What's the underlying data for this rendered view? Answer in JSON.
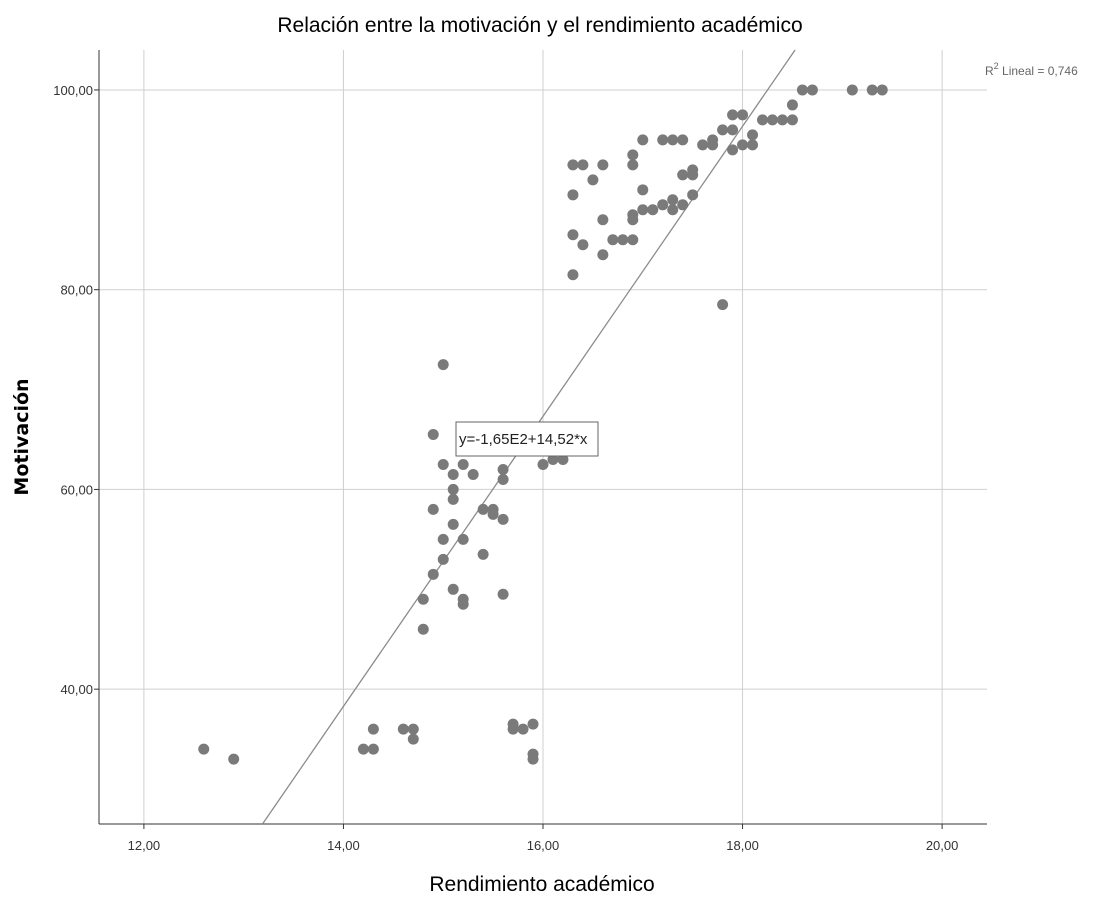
{
  "chart_data": {
    "type": "scatter",
    "title": "Relación entre la motivación y el rendimiento académico",
    "xlabel": "Rendimiento académico",
    "ylabel": "Motivación",
    "xlim": [
      11.55,
      20.45
    ],
    "ylim": [
      26.5,
      104.0
    ],
    "x_ticks": [
      12,
      14,
      16,
      18,
      20
    ],
    "x_tick_labels": [
      "12,00",
      "14,00",
      "16,00",
      "18,00",
      "20,00"
    ],
    "y_ticks": [
      40,
      60,
      80,
      100
    ],
    "y_tick_labels": [
      "40,00",
      "60,00",
      "80,00",
      "100,00"
    ],
    "grid": true,
    "point_color": "#7a7a7a",
    "fit_line": {
      "intercept": -165,
      "slope": 14.52,
      "equation_label": "y=-1,65E2+14,52*x",
      "r2_label_prefix": "R",
      "r2_label_suffix": " Lineal = 0,746",
      "color": "#8c8c8c"
    },
    "points": [
      [
        12.6,
        34
      ],
      [
        12.9,
        33
      ],
      [
        14.2,
        34
      ],
      [
        14.3,
        34
      ],
      [
        14.3,
        36
      ],
      [
        14.6,
        36
      ],
      [
        14.7,
        36
      ],
      [
        14.7,
        35
      ],
      [
        14.8,
        46
      ],
      [
        14.8,
        49
      ],
      [
        14.9,
        51.5
      ],
      [
        14.9,
        58
      ],
      [
        14.9,
        65.5
      ],
      [
        15.0,
        53
      ],
      [
        15.0,
        55
      ],
      [
        15.0,
        62.5
      ],
      [
        15.0,
        72.5
      ],
      [
        15.1,
        50
      ],
      [
        15.1,
        56.5
      ],
      [
        15.1,
        59
      ],
      [
        15.1,
        60
      ],
      [
        15.1,
        61.5
      ],
      [
        15.2,
        48.5
      ],
      [
        15.2,
        49
      ],
      [
        15.2,
        55
      ],
      [
        15.2,
        62.5
      ],
      [
        15.3,
        61.5
      ],
      [
        15.4,
        53.5
      ],
      [
        15.4,
        58
      ],
      [
        15.5,
        57.5
      ],
      [
        15.5,
        58
      ],
      [
        15.6,
        49.5
      ],
      [
        15.6,
        57
      ],
      [
        15.6,
        61
      ],
      [
        15.6,
        62
      ],
      [
        15.7,
        36
      ],
      [
        15.7,
        36.5
      ],
      [
        15.8,
        36
      ],
      [
        15.9,
        33
      ],
      [
        15.9,
        33.5
      ],
      [
        15.9,
        36.5
      ],
      [
        16.0,
        62.5
      ],
      [
        16.0,
        64
      ],
      [
        16.1,
        63
      ],
      [
        16.2,
        63
      ],
      [
        16.3,
        81.5
      ],
      [
        16.3,
        85.5
      ],
      [
        16.3,
        89.5
      ],
      [
        16.3,
        92.5
      ],
      [
        16.4,
        84.5
      ],
      [
        16.4,
        92.5
      ],
      [
        16.5,
        91
      ],
      [
        16.6,
        83.5
      ],
      [
        16.6,
        87
      ],
      [
        16.6,
        92.5
      ],
      [
        16.7,
        85
      ],
      [
        16.8,
        85
      ],
      [
        16.9,
        85
      ],
      [
        16.9,
        87
      ],
      [
        16.9,
        87.5
      ],
      [
        16.9,
        92.5
      ],
      [
        16.9,
        93.5
      ],
      [
        17.0,
        88
      ],
      [
        17.0,
        90
      ],
      [
        17.0,
        95
      ],
      [
        17.1,
        88
      ],
      [
        17.2,
        88.5
      ],
      [
        17.2,
        95
      ],
      [
        17.3,
        88
      ],
      [
        17.3,
        89
      ],
      [
        17.3,
        95
      ],
      [
        17.4,
        88.5
      ],
      [
        17.4,
        91.5
      ],
      [
        17.4,
        95
      ],
      [
        17.5,
        89.5
      ],
      [
        17.5,
        91.5
      ],
      [
        17.5,
        92
      ],
      [
        17.6,
        94.5
      ],
      [
        17.7,
        94.5
      ],
      [
        17.7,
        95
      ],
      [
        17.8,
        78.5
      ],
      [
        17.8,
        96
      ],
      [
        17.9,
        94
      ],
      [
        17.9,
        96
      ],
      [
        17.9,
        97.5
      ],
      [
        18.0,
        94.5
      ],
      [
        18.0,
        97.5
      ],
      [
        18.1,
        94.5
      ],
      [
        18.1,
        95.5
      ],
      [
        18.2,
        97
      ],
      [
        18.3,
        97
      ],
      [
        18.4,
        97
      ],
      [
        18.5,
        97
      ],
      [
        18.5,
        98.5
      ],
      [
        18.6,
        100
      ],
      [
        18.7,
        100
      ],
      [
        19.1,
        100
      ],
      [
        19.3,
        100
      ],
      [
        19.4,
        100
      ]
    ]
  }
}
